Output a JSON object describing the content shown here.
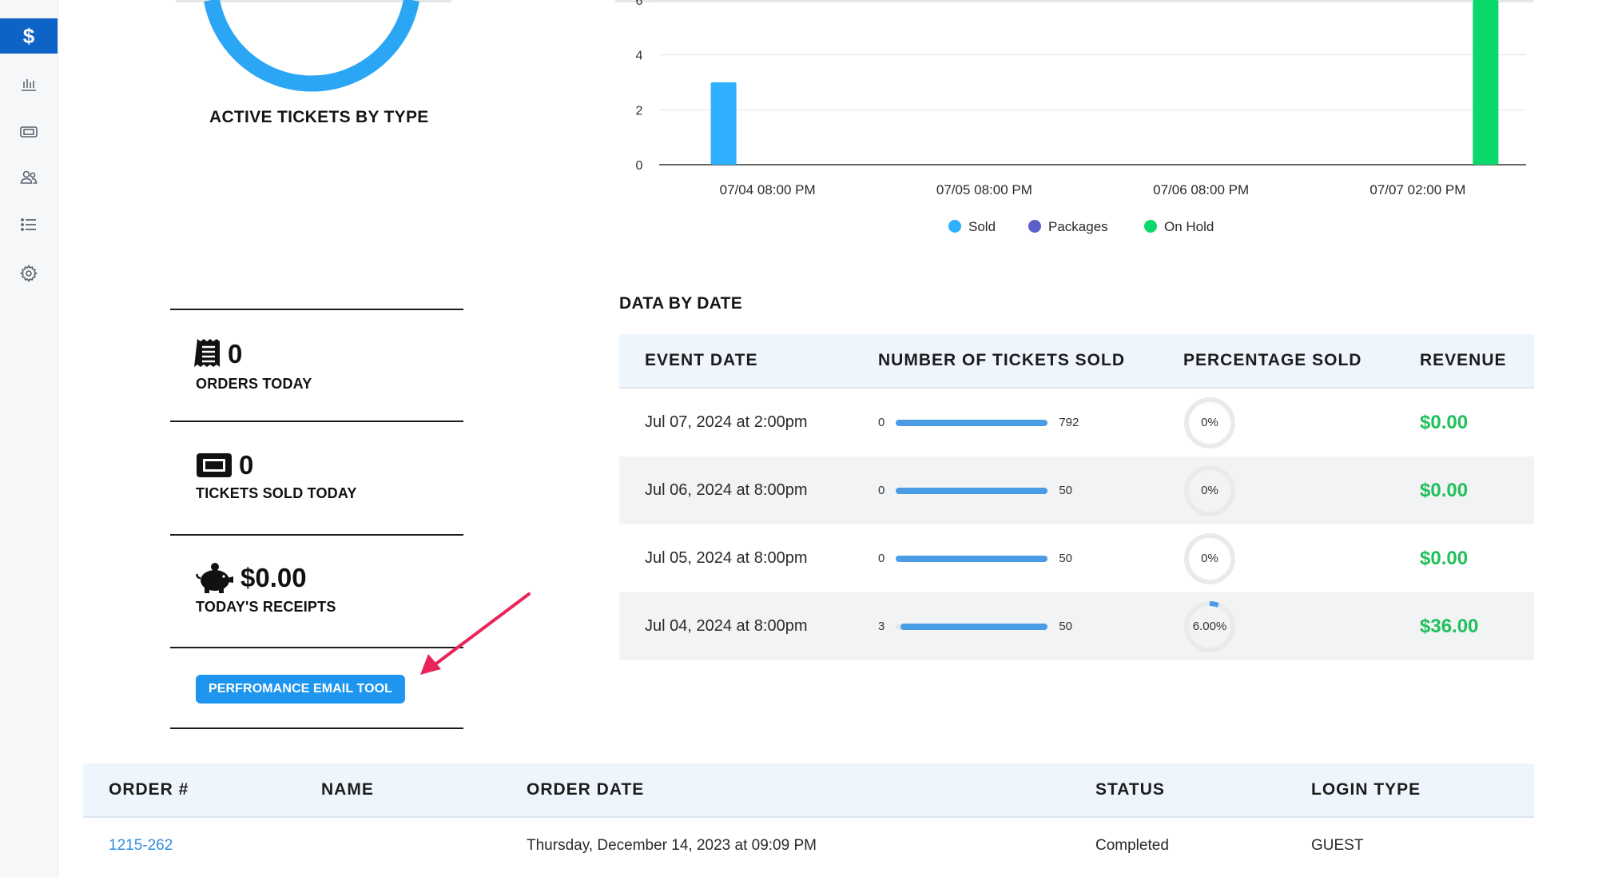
{
  "sidebar": {
    "items": [
      {
        "icon": "dollar-icon",
        "active": true
      },
      {
        "icon": "bar-chart-icon",
        "active": false
      },
      {
        "icon": "ticket-icon",
        "active": false
      },
      {
        "icon": "users-icon",
        "active": false
      },
      {
        "icon": "list-icon",
        "active": false
      },
      {
        "icon": "gear-icon",
        "active": false
      }
    ]
  },
  "active_tickets": {
    "title": "ACTIVE TICKETS BY TYPE"
  },
  "chart_data": {
    "type": "bar",
    "categories": [
      "07/04 08:00 PM",
      "07/05 08:00 PM",
      "07/06 08:00 PM",
      "07/07 02:00 PM"
    ],
    "series": [
      {
        "name": "Sold",
        "color": "#2eb0ff",
        "values": [
          3,
          0,
          0,
          0
        ]
      },
      {
        "name": "Packages",
        "color": "#5b5fc7",
        "values": [
          0,
          0,
          0,
          0
        ]
      },
      {
        "name": "On Hold",
        "color": "#0ad86a",
        "values": [
          0,
          0,
          0,
          6
        ]
      }
    ],
    "y_ticks": [
      "0",
      "2",
      "4",
      "6"
    ],
    "ylim": [
      0,
      6
    ],
    "grid": true,
    "legend_position": "bottom"
  },
  "kpis": [
    {
      "icon": "receipt-icon",
      "value": "0",
      "label": "ORDERS TODAY"
    },
    {
      "icon": "ticket-icon",
      "value": "0",
      "label": "TICKETS SOLD TODAY"
    },
    {
      "icon": "piggy-bank-icon",
      "value": "$0.00",
      "label": "TODAY'S RECEIPTS"
    }
  ],
  "email_tool": {
    "label": "PERFROMANCE EMAIL TOOL"
  },
  "data_by_date": {
    "title": "DATA BY DATE",
    "headers": [
      "EVENT DATE",
      "NUMBER OF TICKETS SOLD",
      "PERCENTAGE SOLD",
      "REVENUE"
    ],
    "rows": [
      {
        "date": "Jul 07, 2024 at 2:00pm",
        "sold": "0",
        "capacity": "792",
        "fraction": 0,
        "pct": "0%",
        "revenue": "$0.00"
      },
      {
        "date": "Jul 06, 2024 at 8:00pm",
        "sold": "0",
        "capacity": "50",
        "fraction": 0,
        "pct": "0%",
        "revenue": "$0.00"
      },
      {
        "date": "Jul 05, 2024 at 8:00pm",
        "sold": "0",
        "capacity": "50",
        "fraction": 0,
        "pct": "0%",
        "revenue": "$0.00"
      },
      {
        "date": "Jul 04, 2024 at 8:00pm",
        "sold": "3",
        "capacity": "50",
        "fraction": 0.06,
        "pct": "6.00%",
        "revenue": "$36.00"
      }
    ]
  },
  "orders": {
    "headers": [
      "ORDER #",
      "NAME",
      "ORDER DATE",
      "STATUS",
      "LOGIN TYPE"
    ],
    "rows": [
      {
        "order": "1215-262",
        "name": "",
        "date": "Thursday, December 14, 2023 at 09:09 PM",
        "status": "Completed",
        "login": "GUEST"
      }
    ]
  }
}
